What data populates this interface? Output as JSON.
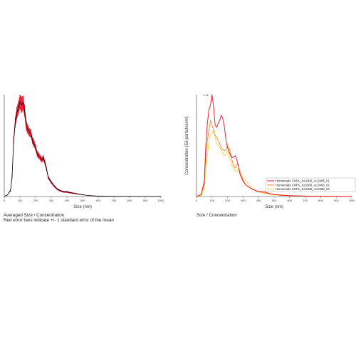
{
  "chart_data": [
    {
      "type": "line",
      "xlabel": "Size (nm)",
      "xlim": [
        0,
        1000
      ],
      "x_ticks": [
        0,
        100,
        200,
        300,
        400,
        500,
        600,
        700,
        800,
        900,
        1000
      ],
      "grid": false,
      "caption_lines": [
        "Averaged Size / Concentration",
        "Red error bars indicate +/- 1 standard error of the mean"
      ],
      "series": [
        {
          "color": "#000000",
          "error_color": "#e8102a",
          "x": [
            0,
            20,
            40,
            50,
            60,
            70,
            80,
            90,
            100,
            110,
            120,
            130,
            140,
            150,
            160,
            170,
            180,
            190,
            200,
            210,
            220,
            230,
            240,
            250,
            260,
            270,
            280,
            300,
            320,
            340,
            360,
            380,
            400,
            420,
            440,
            460,
            480,
            500,
            520,
            540,
            560,
            580,
            600,
            650,
            700,
            800,
            900,
            1000
          ],
          "y": [
            0.2,
            1.5,
            6,
            20,
            55,
            73,
            82,
            87,
            93,
            90,
            92,
            84,
            70,
            66,
            63,
            62,
            55,
            52,
            48,
            42,
            40,
            38,
            36,
            38,
            33,
            27,
            19,
            14,
            10,
            7,
            5.5,
            4.5,
            4.5,
            3.8,
            3.3,
            2.8,
            2.2,
            1.8,
            1.3,
            1.0,
            0.8,
            0.6,
            0.5,
            0.3,
            0.2,
            0.15,
            0.1,
            0.05
          ],
          "error": [
            0.1,
            0.3,
            1,
            2.5,
            4,
            5,
            6,
            6.5,
            7,
            8,
            7,
            6,
            5,
            4.5,
            4,
            4,
            3.5,
            3.5,
            3,
            3,
            2.8,
            2.6,
            2.6,
            2.8,
            2.4,
            2.0,
            1.6,
            1.3,
            1.1,
            0.9,
            0.8,
            0.8,
            0.8,
            0.7,
            0.6,
            0.5,
            0.4,
            0.3,
            0.2,
            0.15,
            0.1,
            0.1,
            0.1,
            0.05,
            0.05,
            0.05,
            0.05,
            0.05
          ]
        }
      ]
    },
    {
      "type": "line",
      "xlabel": "Size (nm)",
      "ylabel": "Concentration (E6 particles/ml)",
      "xlim": [
        0,
        1000
      ],
      "x_ticks": [
        0,
        100,
        200,
        300,
        400,
        500,
        600,
        700,
        800,
        900,
        1000
      ],
      "y_tick_label": "1.16",
      "grid": false,
      "legend_position": "right",
      "caption_lines": [
        "Size / Concentration"
      ],
      "series": [
        {
          "name": "Homemade CNPs_1to1000_ALD488_01",
          "color": "#e8102a",
          "x": [
            0,
            30,
            50,
            60,
            70,
            80,
            90,
            100,
            110,
            120,
            130,
            140,
            150,
            160,
            170,
            180,
            190,
            200,
            210,
            220,
            230,
            240,
            250,
            260,
            270,
            280,
            300,
            320,
            340,
            360,
            380,
            400,
            420,
            440,
            460,
            480,
            500,
            550,
            600,
            700,
            800,
            900,
            1000
          ],
          "y": [
            0,
            2,
            15,
            50,
            72,
            85,
            90,
            100,
            88,
            70,
            68,
            72,
            75,
            80,
            76,
            68,
            55,
            48,
            44,
            40,
            38,
            39,
            40,
            36,
            30,
            22,
            15,
            11,
            9,
            7,
            6,
            4.5,
            5,
            4.5,
            3.5,
            2.5,
            2,
            1.2,
            0.8,
            0.4,
            0.2,
            0.1,
            0
          ]
        },
        {
          "name": "Homemade CNPs_1to1000_ALD488_02",
          "color": "#f5862a",
          "x": [
            0,
            30,
            50,
            60,
            70,
            80,
            90,
            100,
            110,
            120,
            130,
            140,
            150,
            160,
            170,
            180,
            190,
            200,
            210,
            220,
            230,
            240,
            250,
            260,
            270,
            280,
            300,
            320,
            340,
            360,
            380,
            400,
            420,
            440,
            460,
            480,
            500,
            550,
            600,
            700,
            800,
            900,
            1000
          ],
          "y": [
            0,
            2,
            12,
            40,
            55,
            65,
            75,
            70,
            65,
            60,
            58,
            55,
            52,
            48,
            46,
            45,
            46,
            50,
            48,
            42,
            35,
            30,
            28,
            32,
            30,
            24,
            16,
            11,
            9,
            7,
            6,
            5,
            4,
            3.5,
            3,
            2.5,
            2,
            1.5,
            1,
            0.5,
            0.3,
            0.1,
            0
          ]
        },
        {
          "name": "Homemade CNPs_1to1000_ALD488_03",
          "color": "#ffd23f",
          "x": [
            0,
            30,
            50,
            60,
            70,
            80,
            90,
            100,
            110,
            120,
            130,
            140,
            150,
            160,
            170,
            180,
            190,
            200,
            210,
            220,
            230,
            240,
            250,
            260,
            270,
            280,
            300,
            320,
            340,
            360,
            380,
            400,
            420,
            440,
            460,
            480,
            500,
            550,
            600,
            700,
            800,
            900,
            1000
          ],
          "y": [
            0,
            1,
            8,
            25,
            40,
            55,
            60,
            62,
            65,
            58,
            52,
            50,
            48,
            45,
            42,
            40,
            42,
            45,
            40,
            35,
            30,
            28,
            25,
            24,
            28,
            24,
            18,
            15,
            11,
            8,
            6,
            4.5,
            4,
            3,
            2.5,
            2,
            1.5,
            1,
            0.8,
            0.4,
            0.2,
            0.1,
            0
          ]
        }
      ]
    }
  ]
}
